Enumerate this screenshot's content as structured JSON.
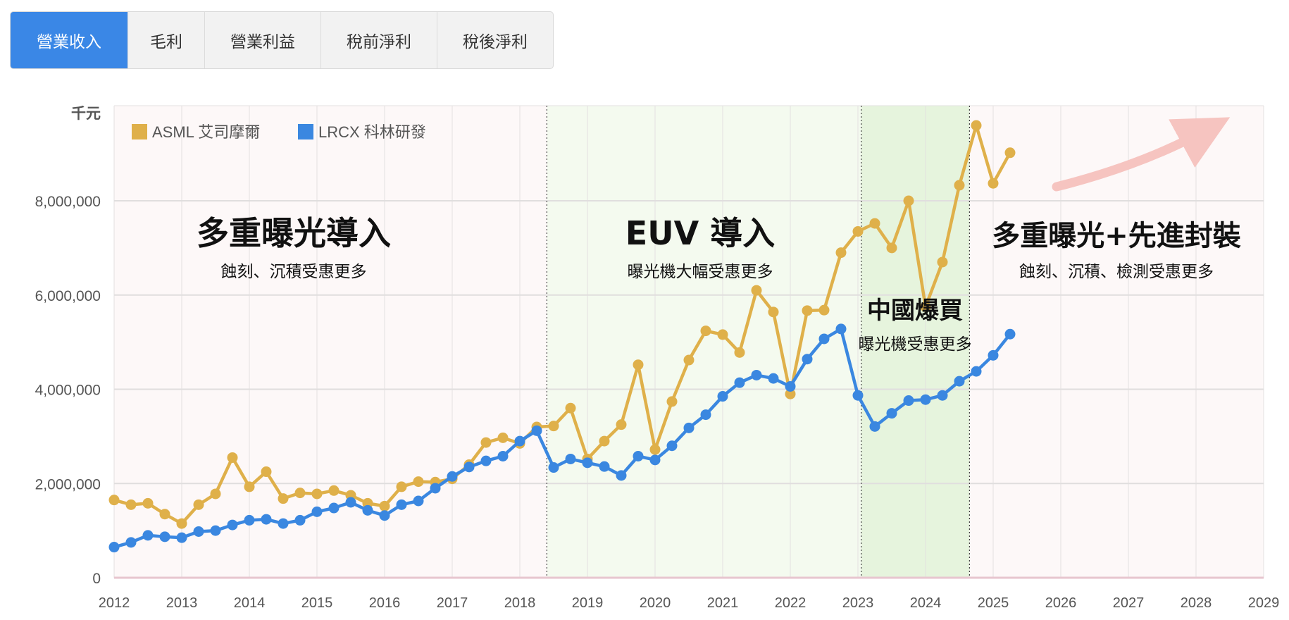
{
  "tabs": [
    {
      "label": "營業收入",
      "active": true
    },
    {
      "label": "毛利",
      "active": false
    },
    {
      "label": "營業利益",
      "active": false
    },
    {
      "label": "稅前淨利",
      "active": false
    },
    {
      "label": "稅後淨利",
      "active": false
    }
  ],
  "chart_data": {
    "type": "line",
    "ylabel": "千元",
    "ylim": [
      0,
      10000000
    ],
    "xlim": [
      2012,
      2029
    ],
    "y_ticks": [
      0,
      2000000,
      4000000,
      6000000,
      8000000
    ],
    "y_tick_labels": [
      "0",
      "2,000,000",
      "4,000,000",
      "6,000,000",
      "8,000,000"
    ],
    "x_ticks": [
      "2012",
      "2013",
      "2014",
      "2015",
      "2016",
      "2017",
      "2018",
      "2019",
      "2020",
      "2021",
      "2022",
      "2023",
      "2024",
      "2025",
      "2026",
      "2027",
      "2028",
      "2029"
    ],
    "legend": {
      "placement": "top-left"
    },
    "x_start": 2012,
    "x_step": 0.25,
    "series": [
      {
        "name": "ASML 艾司摩爾",
        "color": "#dfb04a",
        "values": [
          1650000,
          1550000,
          1580000,
          1350000,
          1150000,
          1550000,
          1780000,
          2550000,
          1930000,
          2250000,
          1680000,
          1800000,
          1780000,
          1850000,
          1750000,
          1580000,
          1520000,
          1930000,
          2040000,
          2030000,
          2100000,
          2400000,
          2870000,
          2970000,
          2850000,
          3200000,
          3220000,
          3600000,
          2520000,
          2900000,
          3250000,
          4520000,
          2720000,
          3740000,
          4620000,
          5240000,
          5160000,
          4780000,
          6100000,
          5640000,
          3900000,
          5670000,
          5680000,
          6900000,
          7350000,
          7520000,
          7000000,
          8000000,
          5750000,
          6700000,
          8330000,
          9600000,
          8370000,
          9020000
        ]
      },
      {
        "name": "LRCX 科林研發",
        "color": "#3a87e0",
        "values": [
          650000,
          750000,
          900000,
          870000,
          850000,
          980000,
          1000000,
          1120000,
          1220000,
          1240000,
          1150000,
          1220000,
          1400000,
          1480000,
          1600000,
          1430000,
          1320000,
          1550000,
          1630000,
          1900000,
          2150000,
          2350000,
          2480000,
          2580000,
          2900000,
          3120000,
          2340000,
          2520000,
          2440000,
          2360000,
          2170000,
          2580000,
          2500000,
          2800000,
          3180000,
          3460000,
          3850000,
          4140000,
          4300000,
          4230000,
          4060000,
          4640000,
          5070000,
          5280000,
          3870000,
          3210000,
          3490000,
          3760000,
          3780000,
          3870000,
          4170000,
          4380000,
          4720000,
          5170000
        ]
      }
    ],
    "bands": [
      {
        "from": 2018.4,
        "to": 2024.65,
        "color": "#f4faef"
      },
      {
        "from": 2023.05,
        "to": 2024.65,
        "color": "#e6f4dd"
      }
    ],
    "dividers": [
      2018.4,
      2023.05,
      2024.65
    ],
    "annotations": [
      {
        "title": "多重曝光導入",
        "subtitle": "蝕刻、沉積受惠更多"
      },
      {
        "title": "EUV 導入",
        "subtitle": "曝光機大幅受惠更多"
      },
      {
        "title": "中國爆買",
        "subtitle": "曝光機受惠更多"
      },
      {
        "title": "多重曝光+先進封裝",
        "subtitle": "蝕刻、沉積、檢測受惠更多"
      }
    ]
  }
}
